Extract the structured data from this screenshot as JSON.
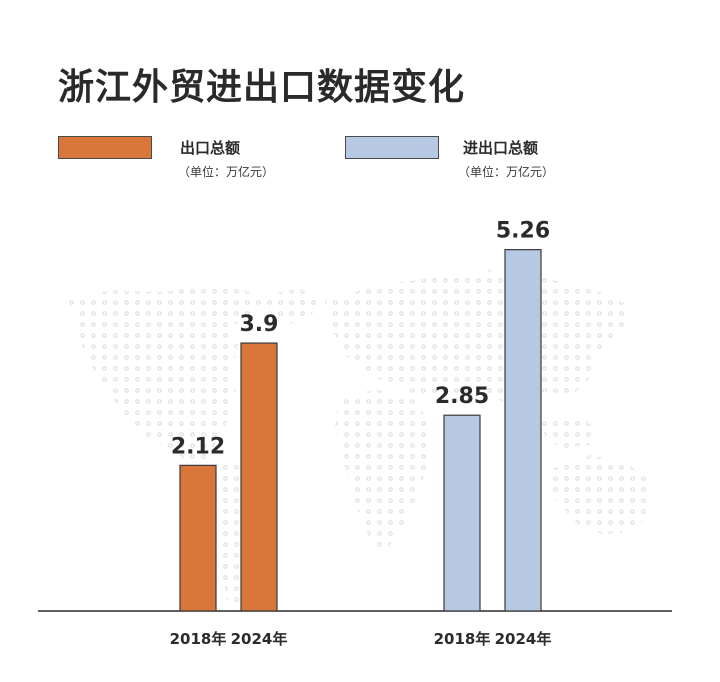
{
  "title": "浙江外贸进出口数据变化",
  "legend": [
    {
      "name": "出口总额",
      "unit": "（单位：万亿元）",
      "color": "#d9773a"
    },
    {
      "name": "进出口总额",
      "unit": "（单位：万亿元）",
      "color": "#b7c8e2"
    }
  ],
  "chart_data": {
    "type": "bar",
    "groups": [
      {
        "series": "出口总额",
        "color": "#d9773a",
        "categories": [
          "2018年",
          "2024年"
        ],
        "values": [
          2.12,
          3.9
        ]
      },
      {
        "series": "进出口总额",
        "color": "#b7c8e2",
        "categories": [
          "2018年",
          "2024年"
        ],
        "values": [
          2.85,
          5.26
        ]
      }
    ],
    "data_labels": [
      "2.12",
      "3.9",
      "2.85",
      "5.26"
    ],
    "unit": "万亿元",
    "ylim": [
      0,
      5.5
    ],
    "grid": false,
    "legend_position": "top",
    "background": "dotted world map"
  }
}
